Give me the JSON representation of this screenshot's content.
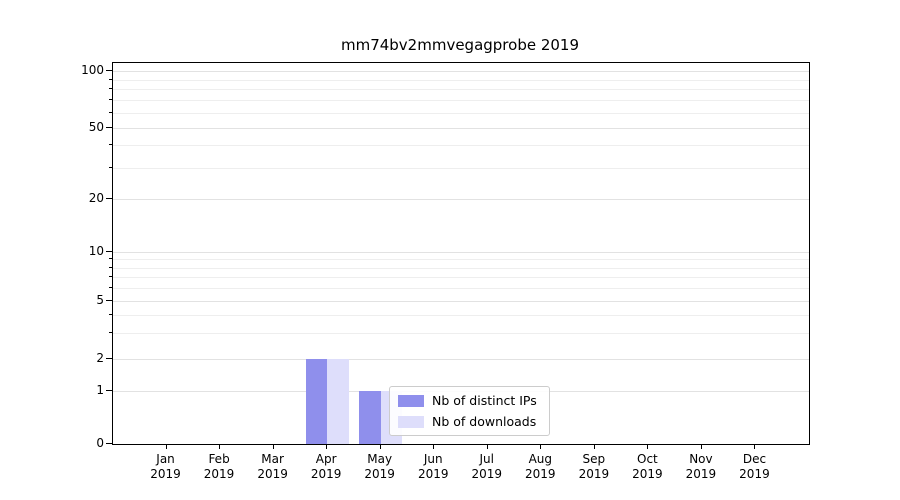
{
  "title": "mm74bv2mmvegagprobe 2019",
  "chart_data": {
    "type": "bar",
    "title": "mm74bv2mmvegagprobe 2019",
    "xlabel": "",
    "ylabel": "",
    "yscale": "symlog",
    "ylim": [
      0,
      110
    ],
    "grid": true,
    "yticks": [
      0,
      1,
      2,
      5,
      10,
      20,
      50,
      100
    ],
    "year": "2019",
    "categories": [
      "Jan",
      "Feb",
      "Mar",
      "Apr",
      "May",
      "Jun",
      "Jul",
      "Aug",
      "Sep",
      "Oct",
      "Nov",
      "Dec"
    ],
    "series": [
      {
        "name": "Nb of distinct IPs",
        "color": "#8f8fec",
        "values": [
          0,
          0,
          0,
          2,
          1,
          0,
          0,
          0,
          0,
          0,
          0,
          0
        ]
      },
      {
        "name": "Nb of downloads",
        "color": "#dedefb",
        "values": [
          0,
          0,
          0,
          2,
          1,
          0,
          0,
          0,
          0,
          0,
          0,
          0
        ]
      }
    ],
    "legend": {
      "position": "inside lower center",
      "items": [
        "Nb of distinct IPs",
        "Nb of downloads"
      ]
    }
  }
}
